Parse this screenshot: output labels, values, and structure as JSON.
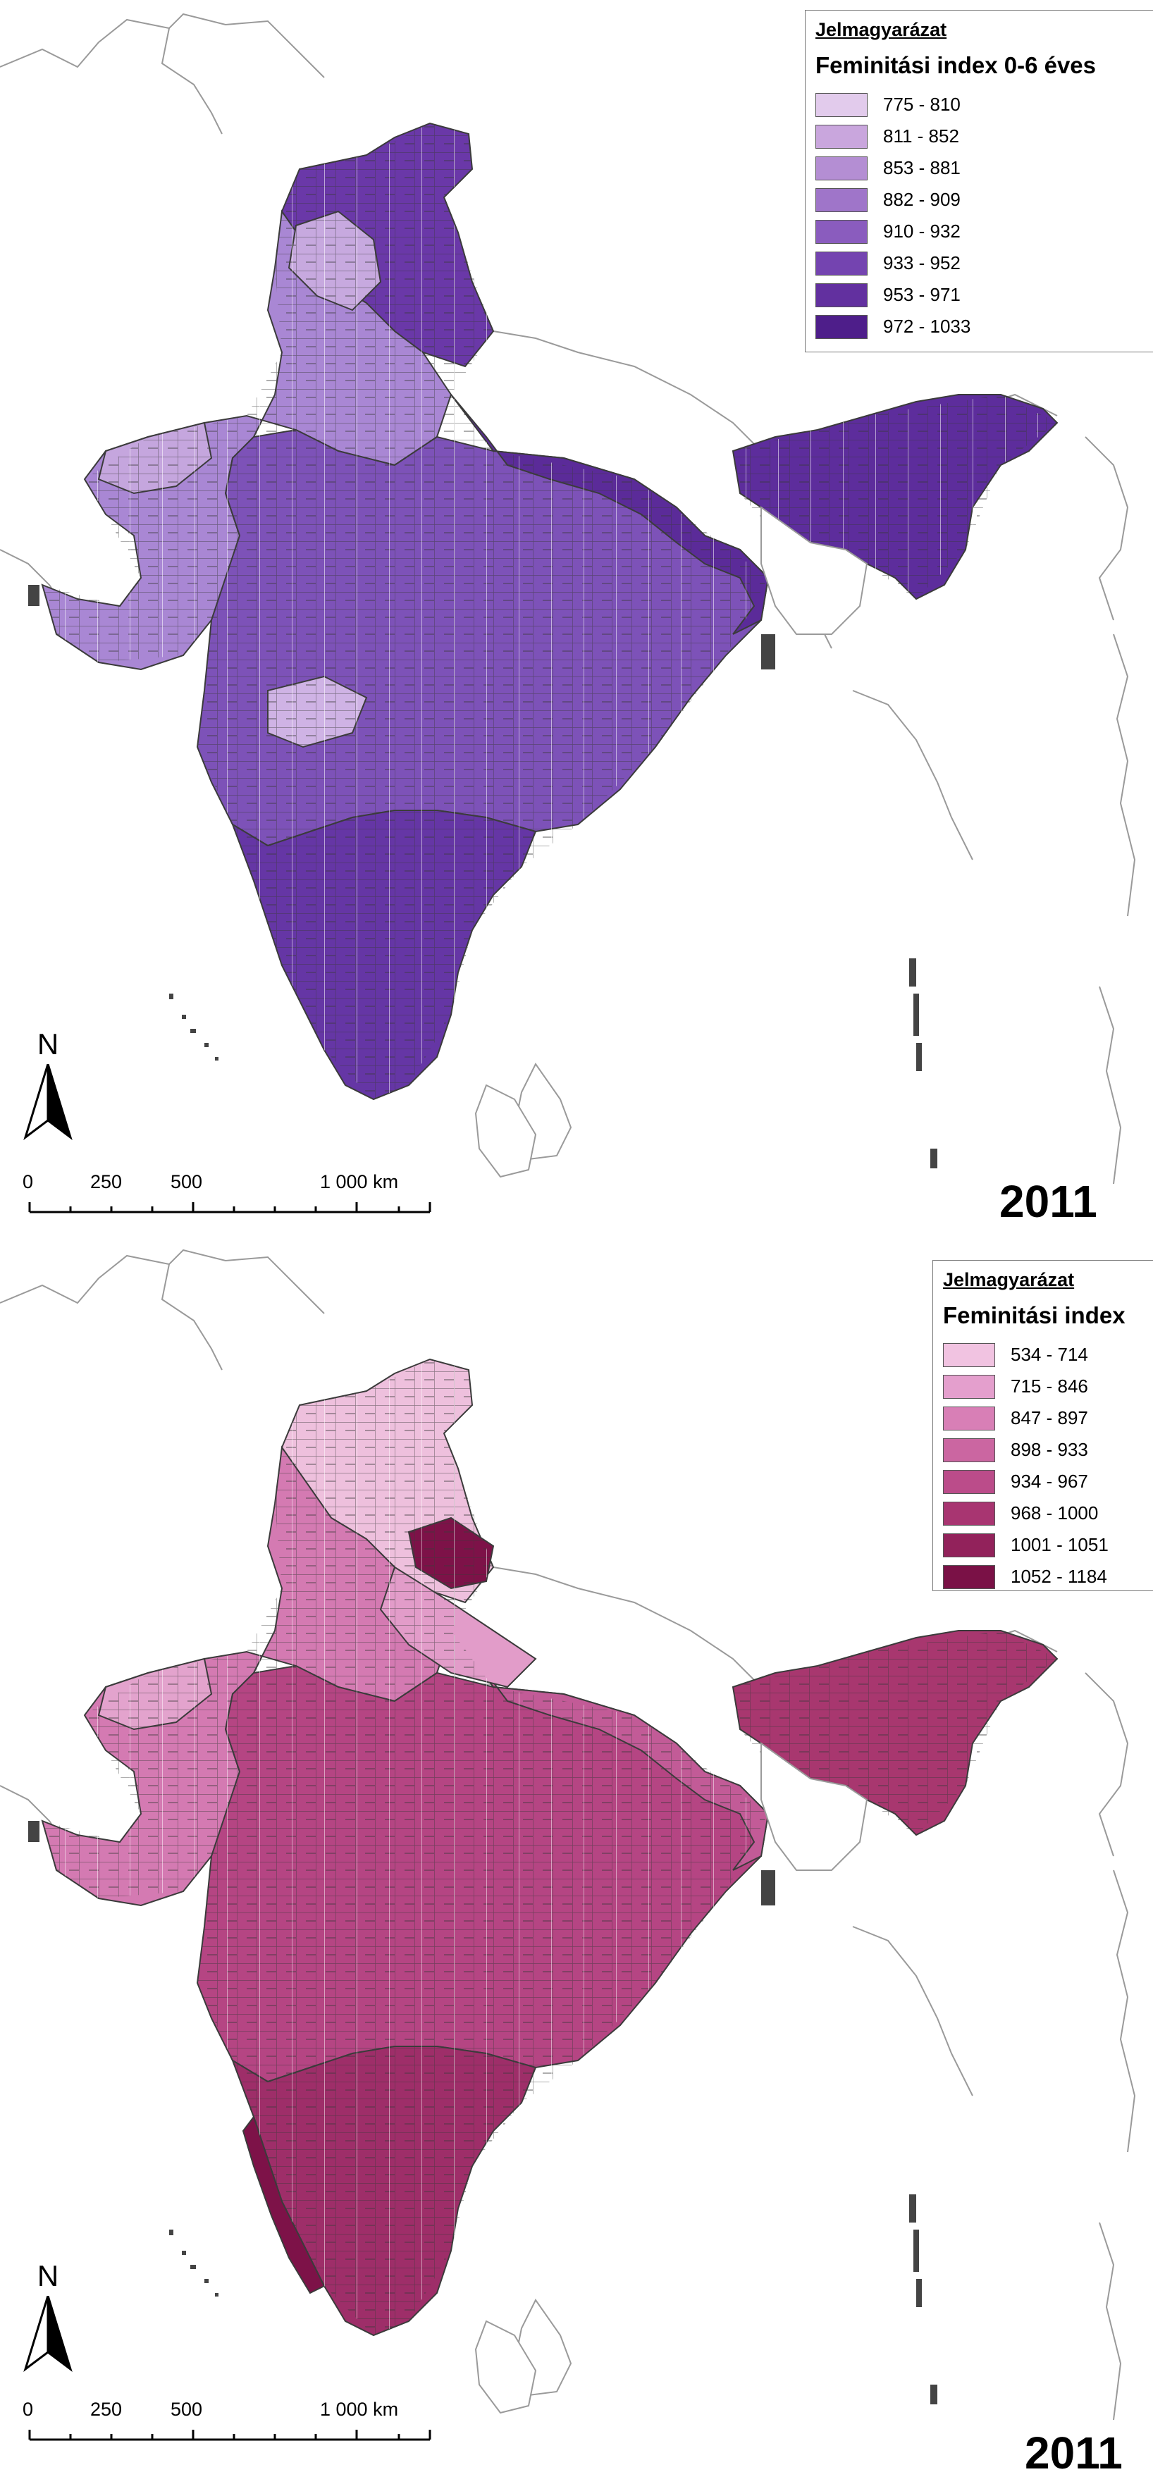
{
  "maps": [
    {
      "legend": {
        "heading": "Jelmagyarázat",
        "title": "Feminitási index 0-6 éves",
        "classes": [
          {
            "label": "775 - 810",
            "color": "#e2cbec"
          },
          {
            "label": "811 - 852",
            "color": "#c9a6dd"
          },
          {
            "label": "853 - 881",
            "color": "#b48ed3"
          },
          {
            "label": "882 - 909",
            "color": "#9f75c9"
          },
          {
            "label": "910 - 932",
            "color": "#8a5cbe"
          },
          {
            "label": "933 - 952",
            "color": "#7444b0"
          },
          {
            "label": "953 - 971",
            "color": "#62309f"
          },
          {
            "label": "972 - 1033",
            "color": "#4e1e8a"
          }
        ]
      },
      "year": "2011",
      "north_label": "N",
      "scale_labels": [
        "0",
        "250",
        "500",
        "1 000 km"
      ]
    },
    {
      "legend": {
        "heading": "Jelmagyarázat",
        "title": "Feminitási index",
        "classes": [
          {
            "label": "534 - 714",
            "color": "#f1c3e1"
          },
          {
            "label": "715 - 846",
            "color": "#e49fcd"
          },
          {
            "label": "847 - 897",
            "color": "#d87fb6"
          },
          {
            "label": "898 - 933",
            "color": "#cb66a1"
          },
          {
            "label": "934 - 967",
            "color": "#bb4c8a"
          },
          {
            "label": "968 - 1000",
            "color": "#a83571"
          },
          {
            "label": "1001 - 1051",
            "color": "#92225b"
          },
          {
            "label": "1052 - 1184",
            "color": "#7a1146"
          }
        ]
      },
      "year": "2011",
      "north_label": "N",
      "scale_labels": [
        "0",
        "250",
        "500",
        "1 000 km"
      ]
    }
  ]
}
